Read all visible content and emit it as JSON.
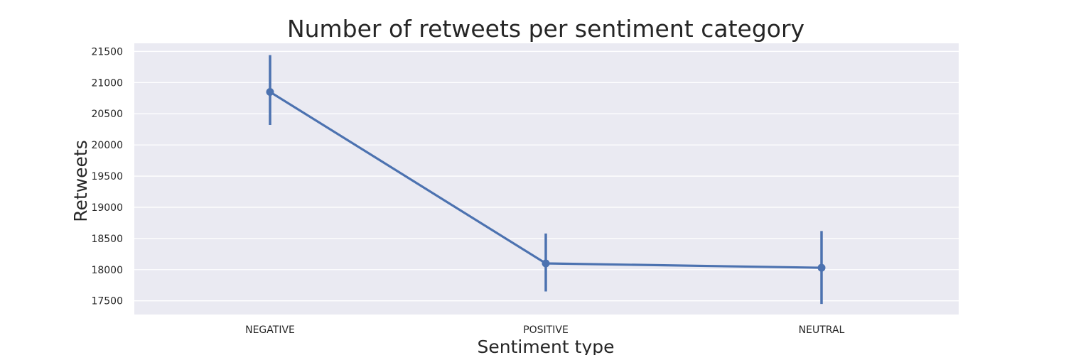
{
  "chart_data": {
    "type": "line",
    "title": "Number of retweets per sentiment category",
    "xlabel": "Sentiment type",
    "ylabel": "Retweets",
    "categories": [
      "NEGATIVE",
      "POSITIVE",
      "NEUTRAL"
    ],
    "series": [
      {
        "values": [
          20850,
          18100,
          18030
        ],
        "error_low": [
          20320,
          17650,
          17450
        ],
        "error_high": [
          21440,
          18580,
          18620
        ],
        "color": "#4c72b0"
      }
    ],
    "yticks": [
      17500,
      18000,
      18500,
      19000,
      19500,
      20000,
      20500,
      21000,
      21500
    ],
    "ylim": [
      17280,
      21630
    ],
    "grid": true,
    "background_color": "#eaeaf2",
    "grid_color": "#ffffff"
  }
}
